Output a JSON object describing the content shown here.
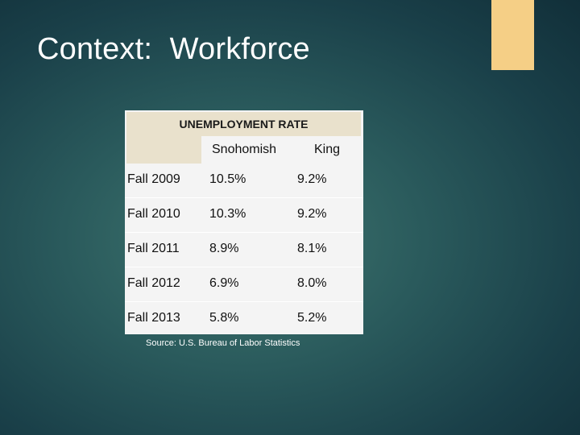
{
  "slide": {
    "title": "Context:  Workforce",
    "accent_color": "#f5cf86"
  },
  "table": {
    "header": "UNEMPLOYMENT RATE",
    "columns": [
      "",
      "Snohomish",
      "King"
    ],
    "rows": [
      [
        "Fall 2009",
        "10.5%",
        "9.2%"
      ],
      [
        "Fall 2010",
        "10.3%",
        "9.2%"
      ],
      [
        "Fall 2011",
        "8.9%",
        "8.1%"
      ],
      [
        "Fall 2012",
        "6.9%",
        "8.0%"
      ],
      [
        "Fall 2013",
        "5.8%",
        "5.2%"
      ]
    ]
  },
  "source": "Source: U.S. Bureau of Labor Statistics"
}
